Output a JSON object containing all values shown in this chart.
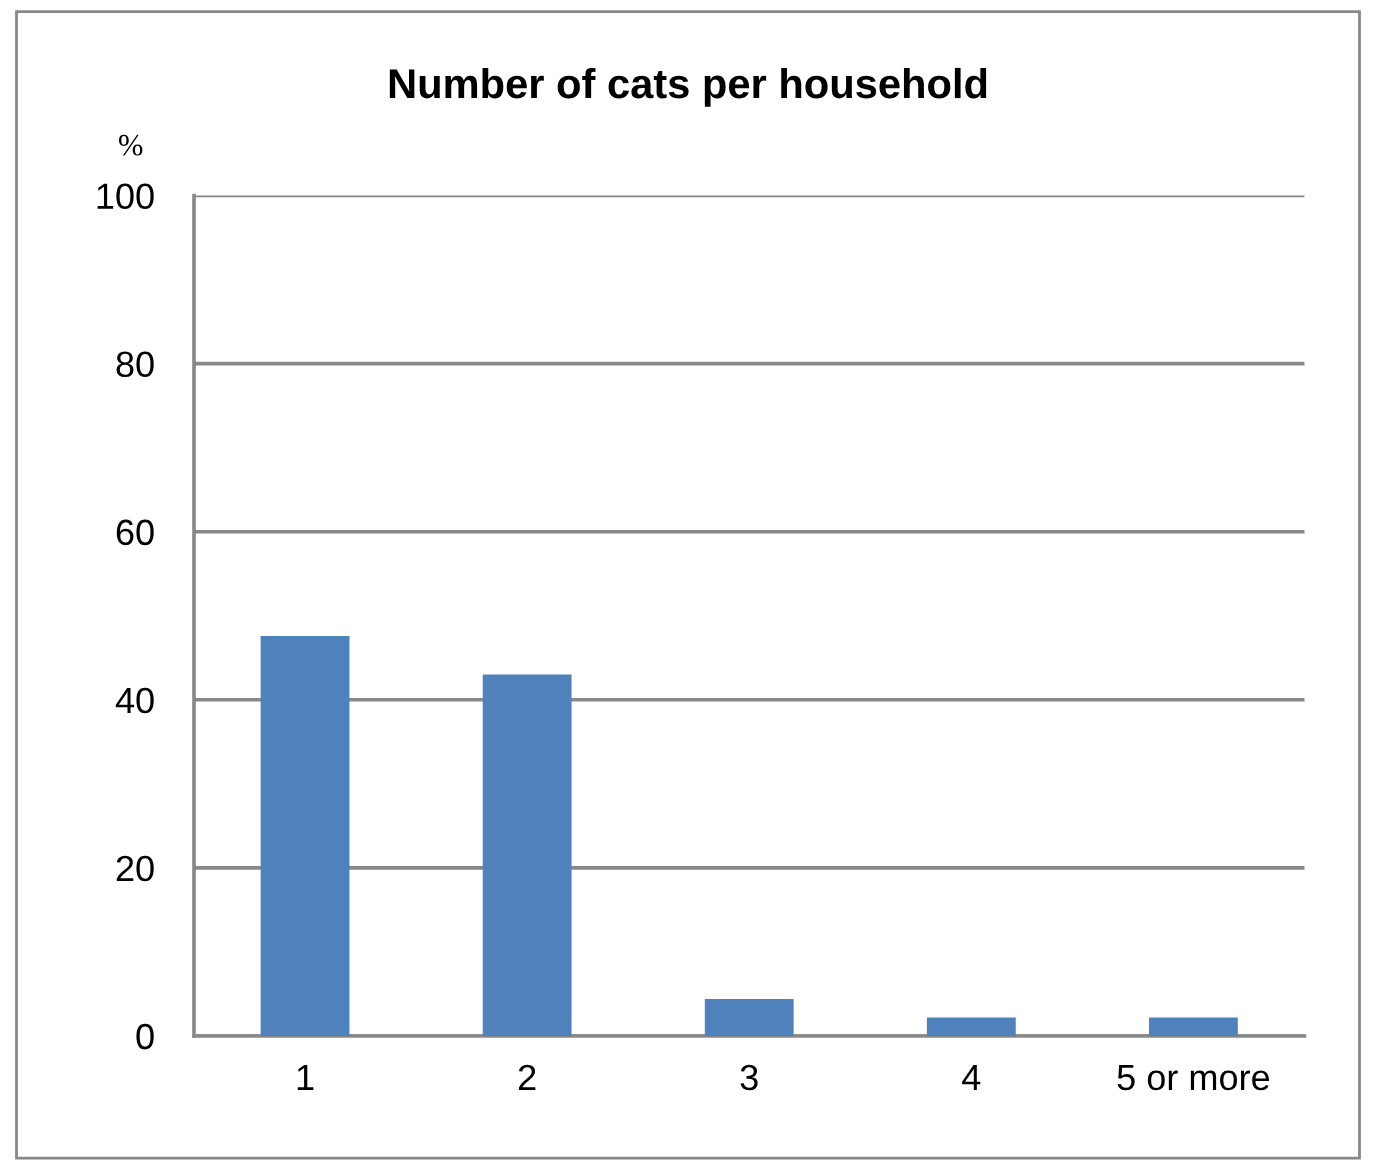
{
  "chart_data": {
    "type": "bar",
    "title": "Number of cats per household",
    "ylabel": "%",
    "categories": [
      "1",
      "2",
      "3",
      "4",
      "5 or more"
    ],
    "values": [
      47.6,
      43.0,
      4.4,
      2.2,
      2.2
    ],
    "color": "#4f81bd",
    "ylim": [
      0,
      100
    ],
    "yticks": [
      0,
      20,
      40,
      60,
      80,
      100
    ],
    "grid": "y"
  }
}
